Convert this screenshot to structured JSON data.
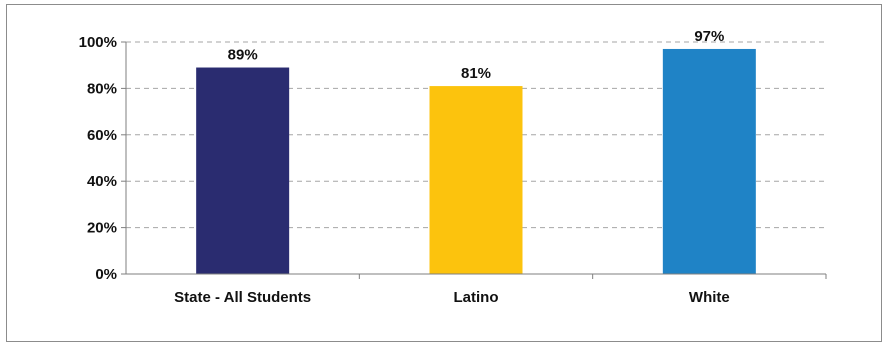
{
  "chart_data": {
    "type": "bar",
    "categories": [
      "State - All Students",
      "Latino",
      "White"
    ],
    "values": [
      89,
      81,
      97
    ],
    "data_labels": [
      "89%",
      "81%",
      "97%"
    ],
    "colors": [
      "#2a2c70",
      "#fcc30d",
      "#1f83c6"
    ],
    "ylim": [
      0,
      100
    ],
    "yticks": [
      0,
      20,
      40,
      60,
      80,
      100
    ],
    "ytick_labels": [
      "0%",
      "20%",
      "40%",
      "60%",
      "80%",
      "100%"
    ],
    "grid": true,
    "grid_style": "dashed",
    "legend": "none"
  }
}
